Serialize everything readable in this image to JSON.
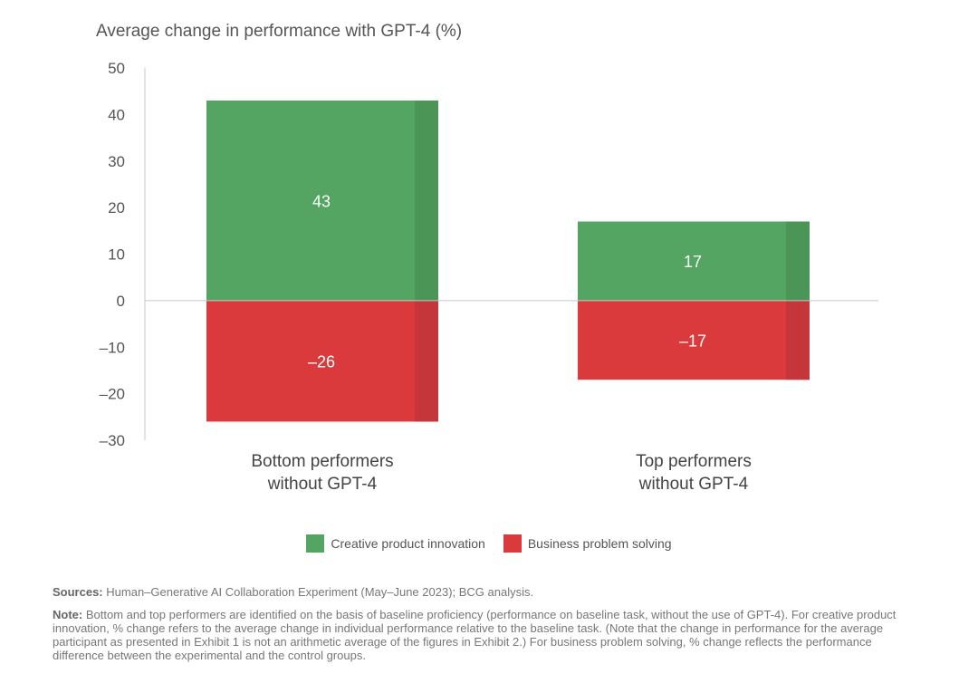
{
  "chart_data": {
    "type": "bar",
    "title": "Average change in performance with GPT-4 (%)",
    "categories": [
      "Bottom performers without GPT-4",
      "Top performers without GPT-4"
    ],
    "category_lines": [
      [
        "Bottom performers",
        "without GPT-4"
      ],
      [
        "Top performers",
        "without GPT-4"
      ]
    ],
    "series": [
      {
        "name": "Creative product innovation",
        "values": [
          43,
          17
        ],
        "color": "#55a562",
        "shade": "#4b9656"
      },
      {
        "name": "Business problem solving",
        "values": [
          -26,
          -17
        ],
        "color": "#db3a3d",
        "shade": "#c5363a"
      }
    ],
    "value_labels": [
      [
        "43",
        "17"
      ],
      [
        "–26",
        "–17"
      ]
    ],
    "ylim": [
      -30,
      50
    ],
    "yticks": [
      50,
      40,
      30,
      20,
      10,
      0,
      -10,
      -20,
      -30
    ],
    "ytick_labels": [
      "50",
      "40",
      "30",
      "20",
      "10",
      "0",
      "–10",
      "–20",
      "–30"
    ],
    "legend_position": "bottom-center",
    "grid": false
  },
  "legend": {
    "items": [
      {
        "label": "Creative product innovation",
        "color": "#55a562"
      },
      {
        "label": "Business problem solving",
        "color": "#db3a3d"
      }
    ]
  },
  "notes": {
    "sources_label": "Sources:",
    "sources_text": "Human–Generative AI Collaboration Experiment (May–June 2023); BCG analysis.",
    "note_label": "Note:",
    "note_text": "Bottom and top performers are identified on the basis of baseline proficiency (performance on baseline task, without the use of GPT-4). For creative product innovation, % change refers to the average change in individual performance relative to the baseline task. (Note that the change in performance for the average participant as presented in Exhibit 1 is not an arithmetic average of the figures in Exhibit 2.) For business problem solving, % change reflects the performance difference between the experimental and the control groups."
  }
}
